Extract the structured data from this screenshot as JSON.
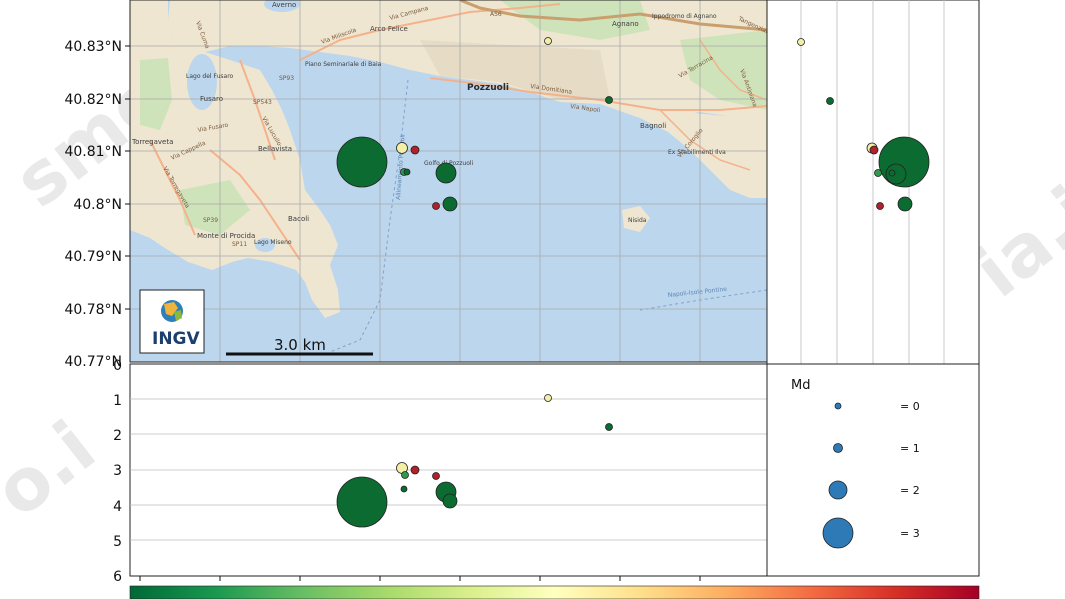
{
  "colors": {
    "event_green": "#0b6b30",
    "event_yellow": "#f3efa6",
    "event_red": "#b3202a",
    "legend_blue": "#2e7ab7",
    "sea": "#bcd6ee",
    "land": "#efe6d2",
    "grid": "#a9a9a9",
    "gradient": [
      "#006837",
      "#1a9850",
      "#66bd63",
      "#a6d96a",
      "#d9ef8b",
      "#ffffbf",
      "#fee08b",
      "#fdae61",
      "#f46d43",
      "#d73027",
      "#a50026"
    ]
  },
  "map": {
    "latitude_ticks": [
      "40.83°N",
      "40.82°N",
      "40.81°N",
      "40.8°N",
      "40.79°N",
      "40.78°N",
      "40.77°N"
    ],
    "scale_bar_label": "3.0 km",
    "logo_text": "INGV",
    "watermark": "...sismologia.ingv..."
  },
  "basemap_labels": {
    "places": [
      "Averno",
      "Arco Felice",
      "Agnano",
      "Ippodromo di Agnano",
      "Lago del Fusaro",
      "Fusaro",
      "Piano Seminariale di Baia",
      "Torregaveta",
      "Bellavista",
      "Golfo di Pozzuoli",
      "Bacoli",
      "Monte di Procida",
      "Lago Miseno",
      "Bagnoli",
      "Ex Stabilimenti Ilva",
      "Nisida"
    ],
    "town": "Pozzuoli",
    "roads": [
      "Via Campana",
      "Via Miliscola",
      "Via Cuma",
      "Via Fusaro",
      "SP93",
      "SP543",
      "Via Lucullo",
      "Via Torregaveta",
      "Via Cappella",
      "SP39",
      "SP11",
      "Via Napoli",
      "Via Domitiana",
      "A56",
      "Via Terracina",
      "Via Coroglio",
      "Tangenziale",
      "Via Antiniana"
    ],
    "sea_labels": [
      "Napoli-Isole Pontine",
      "Allineamento Pozzuoli"
    ]
  },
  "depth_section": {
    "depth_ticks": [
      "0",
      "1",
      "2",
      "3",
      "4",
      "5",
      "6"
    ]
  },
  "legend": {
    "title": "Md",
    "entries": [
      "= 0",
      "= 1",
      "= 2",
      "= 3"
    ]
  }
}
